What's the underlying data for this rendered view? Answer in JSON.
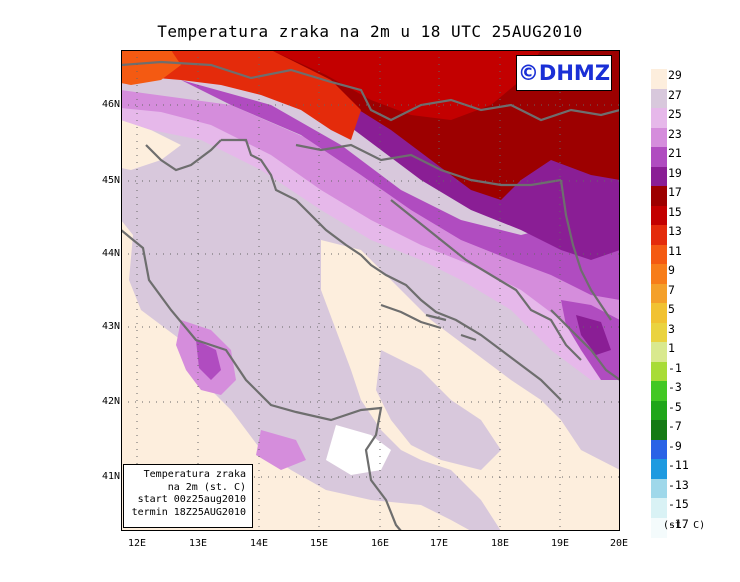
{
  "title": "Temperatura zraka na 2m u 18 UTC 25AUG2010",
  "logo": "©DHMZ",
  "info_box": {
    "line1": "Temperatura zraka",
    "line2": "na 2m (st. C)",
    "line3": "start 00z25aug2010",
    "line4": "termin 18Z25AUG2010"
  },
  "lat_labels": [
    "46N",
    "45N",
    "44N",
    "43N",
    "42N",
    "41N"
  ],
  "lon_labels": [
    "12E",
    "13E",
    "14E",
    "15E",
    "16E",
    "17E",
    "18E",
    "19E",
    "20E"
  ],
  "legend": {
    "labels": [
      "29",
      "27",
      "25",
      "23",
      "21",
      "19",
      "17",
      "15",
      "13",
      "11",
      "9",
      "7",
      "5",
      "3",
      "1",
      "-1",
      "-3",
      "-5",
      "-7",
      "-9",
      "-11",
      "-13",
      "-15",
      "-17"
    ],
    "colors": [
      "#fdeedd",
      "#d8c8dc",
      "#e6b8ea",
      "#d58ddc",
      "#b04cc0",
      "#8a1e95",
      "#9d0000",
      "#c30000",
      "#e42b0b",
      "#f45a12",
      "#f77d1a",
      "#f4a02a",
      "#f1c232",
      "#ead340",
      "#d9e98e",
      "#a8dc37",
      "#42c824",
      "#1fa61a",
      "#157a15",
      "#2a63e6",
      "#1e9ae0",
      "#9fd8ea",
      "#d9f2f5",
      "#f4fbfc"
    ],
    "unit": "(st. C)"
  }
}
